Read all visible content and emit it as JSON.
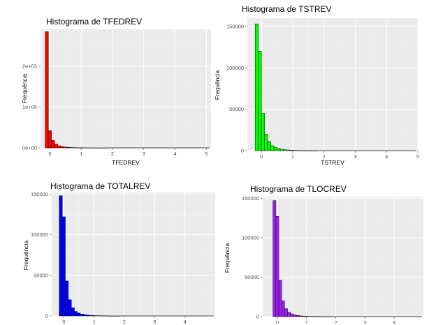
{
  "chart_data": [
    {
      "type": "bar",
      "title": "Histograma de TFEDREV",
      "xlabel": "TFEDREV",
      "ylabel": "Frequência",
      "color": "#ff0000",
      "binwidth": 0.1,
      "bin_start": -0.15,
      "xlim": [
        -0.3,
        5.15
      ],
      "ylim": [
        0,
        290000
      ],
      "xticks": [
        0,
        1,
        2,
        3,
        4,
        5
      ],
      "yticks": [
        0,
        100000,
        200000
      ],
      "ytick_labels": [
        "0e+00",
        "1e+05",
        "2e+05"
      ],
      "values": [
        284000,
        42000,
        18000,
        9000,
        5000,
        3000,
        2000,
        1200,
        800,
        500,
        350,
        250,
        180,
        120,
        90,
        60,
        40,
        30,
        20,
        15
      ]
    },
    {
      "type": "bar",
      "title": "Histograma de TSTREV",
      "xlabel": "TSTREV",
      "ylabel": "Frequência",
      "color": "#00ff00",
      "binwidth": 0.1,
      "bin_start": -0.2,
      "xlim": [
        -0.45,
        5.0
      ],
      "ylim": [
        0,
        160000
      ],
      "xticks": [
        0,
        1,
        2,
        3,
        4,
        5
      ],
      "yticks": [
        0,
        50000,
        100000,
        150000
      ],
      "ytick_labels": [
        "0",
        "50000",
        "100000",
        "150000"
      ],
      "values": [
        153000,
        120000,
        45000,
        20000,
        11000,
        6000,
        3800,
        2600,
        1700,
        1200,
        800,
        550,
        400,
        300,
        200,
        140,
        100,
        70,
        50,
        30
      ]
    },
    {
      "type": "bar",
      "title": "Histograma de TOTALREV",
      "xlabel": "",
      "ylabel": "Frequência",
      "color": "#0000ff",
      "binwidth": 0.1,
      "bin_start": -0.15,
      "xlim": [
        -0.4,
        5.0
      ],
      "ylim": [
        0,
        152000
      ],
      "xticks": [
        0,
        1,
        2,
        3,
        4
      ],
      "yticks": [
        0,
        50000,
        100000,
        150000
      ],
      "ytick_labels": [
        "0",
        "50000",
        "100000",
        "150000"
      ],
      "values": [
        148000,
        122000,
        43000,
        20000,
        10000,
        5500,
        3500,
        2300,
        1500,
        1000,
        700,
        500,
        350,
        250,
        180,
        130,
        90,
        60,
        40,
        30
      ]
    },
    {
      "type": "bar",
      "title": "Histograma de TLOCREV",
      "xlabel": "",
      "ylabel": "Frequência",
      "color": "#a020f0",
      "binwidth": 0.1,
      "bin_start": -0.15,
      "xlim": [
        -0.5,
        5.0
      ],
      "ylim": [
        0,
        152000
      ],
      "xticks": [
        0,
        1,
        2,
        3,
        4
      ],
      "yticks": [
        0,
        50000,
        100000,
        150000
      ],
      "ytick_labels": [
        "0",
        "50000",
        "100000",
        "150000"
      ],
      "values": [
        147000,
        127000,
        46000,
        20000,
        10000,
        5500,
        3500,
        2300,
        1500,
        1000,
        700,
        500,
        350,
        250,
        180,
        130,
        90,
        60,
        40,
        30
      ]
    }
  ]
}
